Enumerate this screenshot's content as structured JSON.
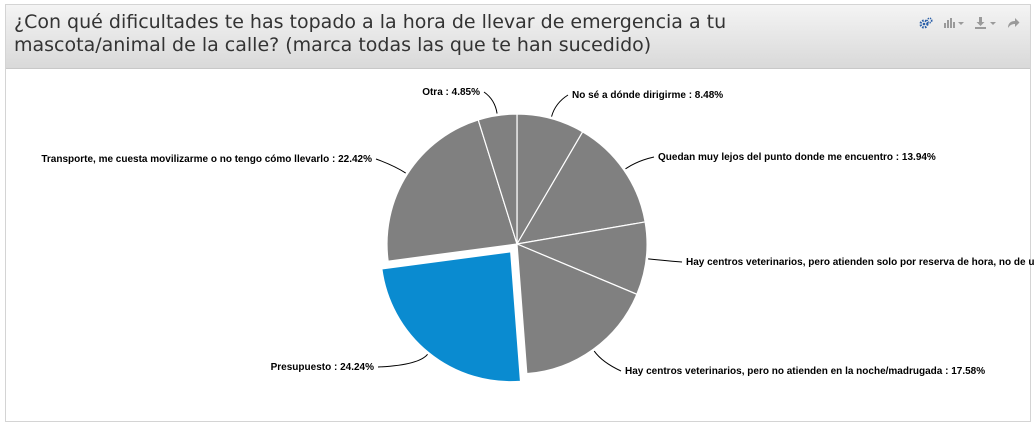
{
  "title": "¿Con qué dificultades te has topado a la hora de llevar de emergencia a tu mascota/animal de la calle? (marca todas las que te han sucedido)",
  "toolbar": {
    "icons": [
      "gears-icon",
      "bar-chart-dropdown-icon",
      "download-dropdown-icon",
      "share-arrow-icon"
    ]
  },
  "colors": {
    "slice": "#808080",
    "highlight": "#0a8bd0",
    "outline": "#ffffff",
    "leader": "#000000"
  },
  "chart_data": {
    "type": "pie",
    "categories": [
      "No sé a dónde dirigirme",
      "Quedan muy lejos del punto donde me encuentro",
      "Hay centros veterinarios, pero atienden solo por reserva de hora, no de u",
      "Hay centros veterinarios, pero no atienden en la noche/madrugada",
      "Presupuesto",
      "Transporte, me cuesta movilizarme o no tengo cómo llevarlo",
      "Otra"
    ],
    "values": [
      8.48,
      13.94,
      9.09,
      17.58,
      24.24,
      22.42,
      4.85
    ],
    "labels": [
      "No sé a dónde dirigirme : 8.48%",
      "Quedan muy lejos del punto donde me encuentro : 13.94%",
      "Hay centros veterinarios, pero atienden solo por reserva de hora, no de u",
      "Hay centros veterinarios, pero no atienden en la noche/madrugada : 17.58%",
      "Presupuesto : 24.24%",
      "Transporte, me cuesta movilizarme o no tengo cómo llevarlo : 22.42%",
      "Otra : 4.85%"
    ],
    "highlighted": "Presupuesto",
    "start_angle_deg": 0,
    "direction": "clockwise"
  }
}
